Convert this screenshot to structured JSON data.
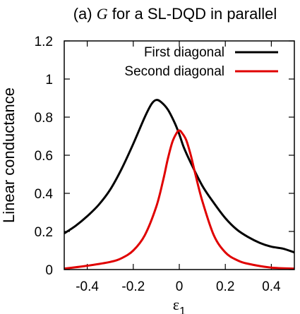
{
  "chart_data": {
    "type": "line",
    "title": "(a) G for a SL-DQD in parallel",
    "title_parts": {
      "prefix": "(a) ",
      "italic": "G",
      "suffix": " for a SL-DQD in parallel"
    },
    "xlabel": "ε1",
    "xlabel_parts": {
      "base": "ε",
      "sub": "1"
    },
    "ylabel": "Linear conductance",
    "xlim": [
      -0.5,
      0.5
    ],
    "ylim": [
      0,
      1.2
    ],
    "xticks": [
      -0.4,
      -0.2,
      0,
      0.2,
      0.4
    ],
    "xtick_labels": [
      "-0.4",
      "-0.2",
      "0",
      "0.2",
      "0.4"
    ],
    "yticks": [
      0,
      0.2,
      0.4,
      0.6,
      0.8,
      1,
      1.2
    ],
    "ytick_labels": [
      "0",
      "0.2",
      "0.4",
      "0.6",
      "0.8",
      "1",
      "1.2"
    ],
    "grid": false,
    "legend_position": "top-right",
    "series": [
      {
        "name": "First diagonal",
        "color": "#000000",
        "x": [
          -0.5,
          -0.45,
          -0.4,
          -0.35,
          -0.3,
          -0.25,
          -0.2,
          -0.15,
          -0.12,
          -0.1,
          -0.08,
          -0.05,
          -0.02,
          0,
          0.02,
          0.05,
          0.1,
          0.15,
          0.2,
          0.25,
          0.3,
          0.35,
          0.4,
          0.45,
          0.5
        ],
        "y": [
          0.19,
          0.23,
          0.28,
          0.34,
          0.42,
          0.53,
          0.66,
          0.8,
          0.87,
          0.89,
          0.88,
          0.84,
          0.77,
          0.71,
          0.64,
          0.56,
          0.44,
          0.35,
          0.27,
          0.21,
          0.17,
          0.14,
          0.12,
          0.11,
          0.09
        ]
      },
      {
        "name": "Second diagonal",
        "color": "#e00000",
        "x": [
          -0.5,
          -0.4,
          -0.3,
          -0.25,
          -0.2,
          -0.15,
          -0.1,
          -0.07,
          -0.05,
          -0.03,
          -0.01,
          0,
          0.01,
          0.03,
          0.05,
          0.07,
          0.1,
          0.15,
          0.2,
          0.25,
          0.3,
          0.4,
          0.5
        ],
        "y": [
          0.005,
          0.02,
          0.04,
          0.06,
          0.1,
          0.18,
          0.33,
          0.47,
          0.58,
          0.67,
          0.72,
          0.73,
          0.72,
          0.68,
          0.6,
          0.5,
          0.36,
          0.18,
          0.09,
          0.05,
          0.03,
          0.01,
          0.005
        ]
      }
    ]
  }
}
